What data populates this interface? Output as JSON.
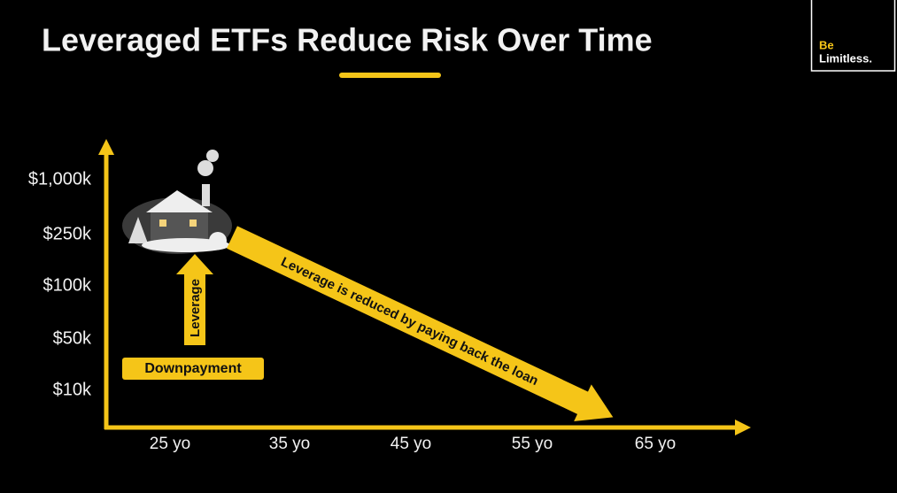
{
  "title": "Leveraged ETFs Reduce Risk Over Time",
  "logo": {
    "line1": "Be",
    "line2": "Limitless."
  },
  "y_axis": {
    "labels": [
      "$1,000k",
      "$250k",
      "$100k",
      "$50k",
      "$10k"
    ]
  },
  "x_axis": {
    "labels": [
      "25 yo",
      "35 yo",
      "45 yo",
      "55 yo",
      "65 yo"
    ]
  },
  "annotations": {
    "downpayment": "Downpayment",
    "leverage": "Leverage",
    "diagonal": "Leverage is reduced by paying back the loan"
  }
}
